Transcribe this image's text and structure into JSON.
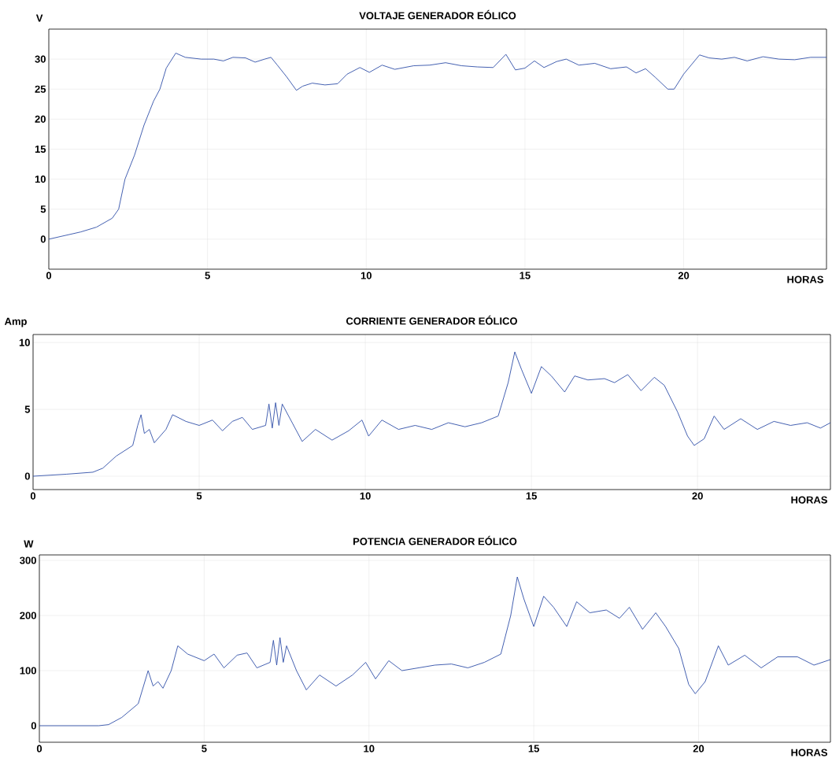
{
  "chart_data": [
    {
      "type": "line",
      "title": "VOLTAJE GENERADOR EÓLICO",
      "xlabel": "HORAS",
      "ylabel": "V",
      "xlim": [
        0,
        24.5
      ],
      "ylim": [
        -5,
        35
      ],
      "xticks": [
        0,
        5,
        10,
        15,
        20
      ],
      "yticks": [
        0,
        5,
        10,
        15,
        20,
        25,
        30
      ],
      "grid": true,
      "x": [
        0,
        0.5,
        1,
        1.5,
        2,
        2.2,
        2.4,
        2.7,
        3,
        3.3,
        3.5,
        3.7,
        4,
        4.3,
        4.8,
        5.2,
        5.5,
        5.8,
        6.2,
        6.5,
        6.8,
        7,
        7.2,
        7.5,
        7.8,
        8,
        8.3,
        8.7,
        9.1,
        9.4,
        9.8,
        10.1,
        10.5,
        10.9,
        11.5,
        12,
        12.5,
        13,
        13.5,
        14,
        14.4,
        14.7,
        15,
        15.3,
        15.6,
        16,
        16.3,
        16.7,
        17.2,
        17.7,
        18.2,
        18.5,
        18.8,
        19.1,
        19.5,
        19.7,
        20,
        20.5,
        20.8,
        21.2,
        21.6,
        22,
        22.5,
        23,
        23.5,
        24,
        24.5
      ],
      "series": [
        {
          "color": "#2f4ea8",
          "values": [
            0,
            0.6,
            1.2,
            2,
            3.5,
            5,
            10,
            14,
            19,
            23,
            25,
            28.5,
            31,
            30.3,
            30,
            30,
            29.7,
            30.3,
            30.2,
            29.5,
            30,
            30.3,
            29,
            27,
            24.8,
            25.5,
            26,
            25.7,
            25.9,
            27.5,
            28.6,
            27.8,
            29,
            28.3,
            28.9,
            29,
            29.4,
            28.9,
            28.7,
            28.6,
            30.8,
            28.2,
            28.5,
            29.7,
            28.6,
            29.6,
            30,
            29,
            29.3,
            28.4,
            28.7,
            27.7,
            28.4,
            27,
            25,
            25,
            27.5,
            30.7,
            30.2,
            30,
            30.3,
            29.7,
            30.4,
            30,
            29.9,
            30.3,
            30.3
          ]
        }
      ]
    },
    {
      "type": "line",
      "title": "CORRIENTE GENERADOR EÓLICO",
      "xlabel": "HORAS",
      "ylabel": "Amp",
      "xlim": [
        0,
        24
      ],
      "ylim": [
        -1,
        10.6
      ],
      "xticks": [
        0,
        5,
        10,
        15,
        20
      ],
      "yticks": [
        0,
        5,
        10
      ],
      "grid": true,
      "x": [
        0,
        1,
        1.8,
        2.1,
        2.5,
        3,
        3.15,
        3.25,
        3.35,
        3.5,
        3.65,
        4,
        4.2,
        4.6,
        5,
        5.4,
        5.7,
        6,
        6.3,
        6.6,
        7,
        7.1,
        7.2,
        7.3,
        7.4,
        7.5,
        7.8,
        8.1,
        8.5,
        9,
        9.5,
        9.9,
        10.1,
        10.5,
        11,
        11.5,
        12,
        12.5,
        13,
        13.5,
        14,
        14.3,
        14.5,
        14.7,
        15,
        15.3,
        15.6,
        16,
        16.3,
        16.7,
        17.2,
        17.5,
        17.9,
        18.3,
        18.7,
        19,
        19.4,
        19.7,
        19.9,
        20.2,
        20.5,
        20.8,
        21.3,
        21.8,
        22.3,
        22.8,
        23.3,
        23.7,
        24
      ],
      "series": [
        {
          "color": "#2f4ea8",
          "values": [
            0,
            0.15,
            0.3,
            0.6,
            1.5,
            2.3,
            3.8,
            4.6,
            3.2,
            3.5,
            2.5,
            3.5,
            4.6,
            4.1,
            3.8,
            4.2,
            3.4,
            4.1,
            4.4,
            3.5,
            3.8,
            5.4,
            3.6,
            5.5,
            3.8,
            5.4,
            4,
            2.6,
            3.5,
            2.7,
            3.4,
            4.2,
            3,
            4.2,
            3.5,
            3.8,
            3.5,
            4,
            3.7,
            4,
            4.5,
            7,
            9.3,
            8,
            6.2,
            8.2,
            7.5,
            6.3,
            7.5,
            7.2,
            7.3,
            7,
            7.6,
            6.4,
            7.4,
            6.8,
            4.8,
            3,
            2.3,
            2.8,
            4.5,
            3.5,
            4.3,
            3.5,
            4.1,
            3.8,
            4,
            3.6,
            4
          ]
        }
      ]
    },
    {
      "type": "line",
      "title": "POTENCIA GENERADOR EÓLICO",
      "xlabel": "HORAS",
      "ylabel": "W",
      "xlim": [
        0,
        24
      ],
      "ylim": [
        -30,
        310
      ],
      "xticks": [
        0,
        5,
        10,
        15,
        20
      ],
      "yticks": [
        0,
        100,
        200,
        300
      ],
      "grid": true,
      "x": [
        0,
        1.8,
        2.1,
        2.5,
        3,
        3.15,
        3.3,
        3.45,
        3.6,
        3.75,
        4,
        4.2,
        4.5,
        5,
        5.3,
        5.6,
        6,
        6.3,
        6.6,
        7,
        7.1,
        7.2,
        7.3,
        7.4,
        7.5,
        7.8,
        8.1,
        8.5,
        9,
        9.5,
        9.9,
        10.2,
        10.6,
        11,
        11.5,
        12,
        12.5,
        13,
        13.5,
        14,
        14.3,
        14.5,
        14.7,
        15,
        15.3,
        15.6,
        16,
        16.3,
        16.7,
        17.2,
        17.6,
        17.9,
        18.3,
        18.7,
        19,
        19.4,
        19.7,
        19.9,
        20.2,
        20.6,
        20.9,
        21.4,
        21.9,
        22.4,
        23,
        23.5,
        24
      ],
      "series": [
        {
          "color": "#2f4ea8",
          "values": [
            0,
            0,
            2,
            15,
            40,
            70,
            100,
            72,
            80,
            68,
            100,
            145,
            130,
            118,
            130,
            105,
            128,
            132,
            105,
            115,
            155,
            110,
            160,
            115,
            145,
            100,
            65,
            92,
            72,
            92,
            115,
            85,
            118,
            100,
            105,
            110,
            112,
            105,
            115,
            130,
            200,
            270,
            230,
            180,
            235,
            215,
            180,
            225,
            205,
            210,
            195,
            215,
            175,
            205,
            180,
            140,
            75,
            58,
            80,
            145,
            110,
            128,
            105,
            125,
            125,
            110,
            120
          ]
        }
      ]
    }
  ]
}
